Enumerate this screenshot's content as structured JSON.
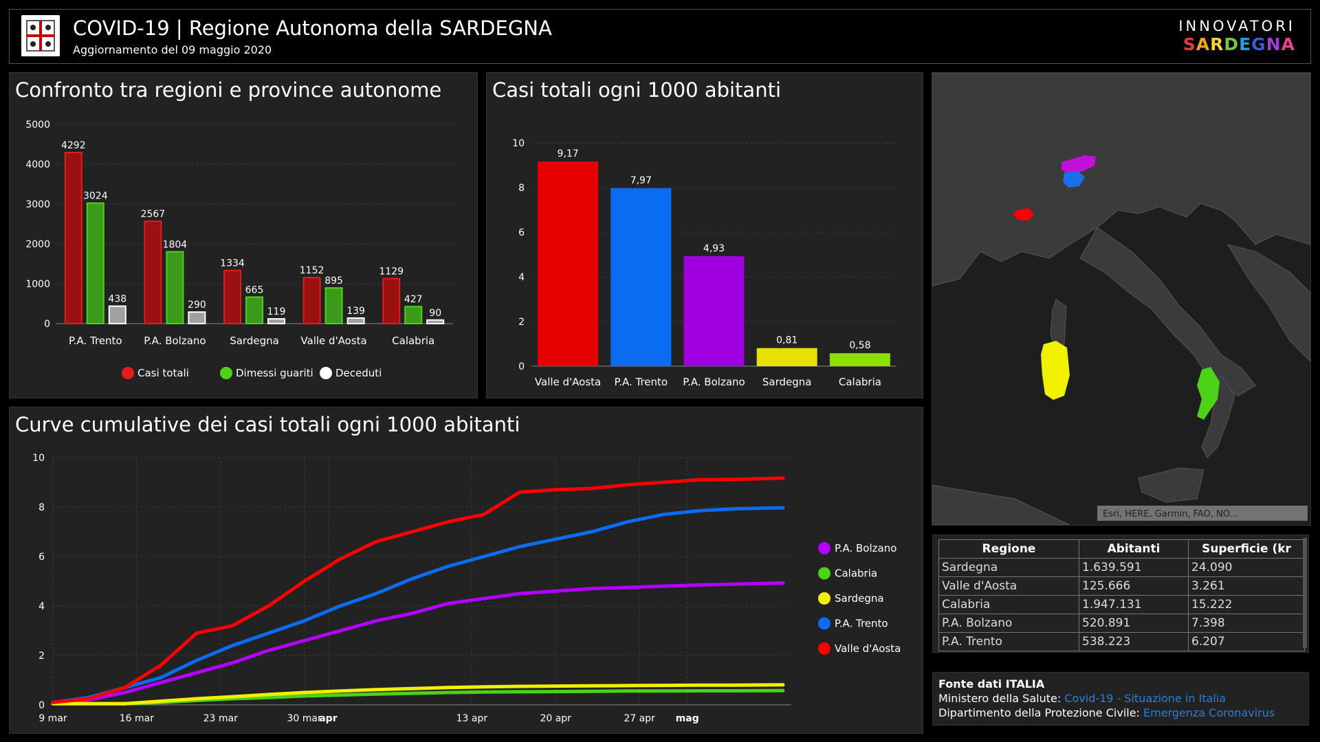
{
  "header": {
    "title": "COVID-19 | Regione Autonoma della SARDEGNA",
    "subtitle": "Aggiornamento del 09 maggio 2020",
    "brand_top": "INNOVATORI",
    "brand_bottom": "SARDEGNA",
    "brand_colors": [
      "#e63946",
      "#f4a21e",
      "#f3d23a",
      "#7cc24a",
      "#1fa0d8",
      "#3c5bd8",
      "#9b3fd1",
      "#e2468a"
    ]
  },
  "chart_data": [
    {
      "type": "bar",
      "title": "Confronto tra regioni e province autonome",
      "categories": [
        "P.A. Trento",
        "P.A. Bolzano",
        "Sardegna",
        "Valle d'Aosta",
        "Calabria"
      ],
      "series": [
        {
          "name": "Casi totali",
          "values": [
            4292,
            2567,
            1334,
            1152,
            1129
          ],
          "color": "#9b1111"
        },
        {
          "name": "Dimessi guariti",
          "values": [
            3024,
            1804,
            665,
            895,
            427
          ],
          "color": "#3c9a1a"
        },
        {
          "name": "Deceduti",
          "values": [
            438,
            290,
            119,
            139,
            90
          ],
          "color": "#a0a0a0"
        }
      ],
      "legend_colors": [
        "#e61b1b",
        "#4cd318",
        "#ffffff"
      ],
      "ylim": [
        0,
        5000
      ],
      "yticks": [
        "0",
        "1000",
        "2000",
        "3000",
        "4000",
        "5000"
      ],
      "legend": "bottom",
      "grid": true
    },
    {
      "type": "bar",
      "title": "Casi totali ogni 1000 abitanti",
      "categories": [
        "Valle d'Aosta",
        "P.A. Trento",
        "P.A. Bolzano",
        "Sardegna",
        "Calabria"
      ],
      "values": [
        9.17,
        7.97,
        4.93,
        0.81,
        0.58
      ],
      "labels": [
        "9,17",
        "7,97",
        "4,93",
        "0,81",
        "0,58"
      ],
      "colors": [
        "#e60000",
        "#0a6cf0",
        "#a000e0",
        "#e8e000",
        "#8ce000"
      ],
      "ylim": [
        0,
        10
      ],
      "yticks": [
        "0",
        "2",
        "4",
        "6",
        "8",
        "10"
      ],
      "grid": true
    },
    {
      "type": "line",
      "title": "Curve cumulative dei casi totali ogni 1000 abitanti",
      "x_dates": [
        "2020-03-09",
        "2020-03-12",
        "2020-03-15",
        "2020-03-18",
        "2020-03-21",
        "2020-03-24",
        "2020-03-27",
        "2020-03-30",
        "2020-04-02",
        "2020-04-05",
        "2020-04-08",
        "2020-04-11",
        "2020-04-14",
        "2020-04-17",
        "2020-04-20",
        "2020-04-23",
        "2020-04-26",
        "2020-04-29",
        "2020-05-02",
        "2020-05-05",
        "2020-05-09"
      ],
      "xticks": [
        "9 mar",
        "16 mar",
        "23 mar",
        "30 mar",
        "apr",
        "13 apr",
        "20 apr",
        "27 apr",
        "mag"
      ],
      "xtick_dates": [
        "2020-03-09",
        "2020-03-16",
        "2020-03-23",
        "2020-03-30",
        "2020-04-01",
        "2020-04-13",
        "2020-04-20",
        "2020-04-27",
        "2020-05-01"
      ],
      "ylim": [
        0,
        10
      ],
      "yticks": [
        "0",
        "2",
        "4",
        "6",
        "8",
        "10"
      ],
      "legend": "right",
      "grid": true,
      "series": [
        {
          "name": "P.A. Bolzano",
          "color": "#b400ff",
          "values": [
            0.1,
            0.2,
            0.5,
            0.9,
            1.3,
            1.7,
            2.2,
            2.6,
            3.0,
            3.4,
            3.7,
            4.1,
            4.3,
            4.5,
            4.6,
            4.7,
            4.75,
            4.8,
            4.85,
            4.88,
            4.93
          ]
        },
        {
          "name": "Calabria",
          "color": "#4cd318",
          "values": [
            0.05,
            0.05,
            0.05,
            0.1,
            0.18,
            0.25,
            0.3,
            0.36,
            0.4,
            0.44,
            0.47,
            0.5,
            0.52,
            0.53,
            0.54,
            0.55,
            0.56,
            0.56,
            0.57,
            0.57,
            0.58
          ]
        },
        {
          "name": "Sardegna",
          "color": "#f0f000",
          "values": [
            0.05,
            0.05,
            0.05,
            0.15,
            0.25,
            0.33,
            0.42,
            0.5,
            0.56,
            0.62,
            0.66,
            0.7,
            0.73,
            0.75,
            0.76,
            0.77,
            0.78,
            0.79,
            0.8,
            0.8,
            0.81
          ]
        },
        {
          "name": "P.A. Trento",
          "color": "#0a6cf0",
          "values": [
            0.1,
            0.3,
            0.7,
            1.1,
            1.8,
            2.4,
            2.9,
            3.4,
            4.0,
            4.5,
            5.1,
            5.6,
            6.0,
            6.4,
            6.7,
            7.0,
            7.4,
            7.7,
            7.85,
            7.93,
            7.97
          ]
        },
        {
          "name": "Valle d'Aosta",
          "color": "#ff0000",
          "values": [
            0.1,
            0.25,
            0.7,
            1.6,
            2.9,
            3.2,
            4.0,
            5.0,
            5.9,
            6.6,
            7.0,
            7.4,
            7.7,
            8.6,
            8.7,
            8.75,
            8.9,
            9.0,
            9.1,
            9.12,
            9.17
          ]
        }
      ]
    }
  ],
  "map": {
    "attribution": "Esri, HERE, Garmin, FAO, NO..."
  },
  "table": {
    "headers": [
      "Regione",
      "Abitanti",
      "Superficie (kr"
    ],
    "rows": [
      [
        "Sardegna",
        "1.639.591",
        "24.090"
      ],
      [
        "Valle d'Aosta",
        "125.666",
        "3.261"
      ],
      [
        "Calabria",
        "1.947.131",
        "15.222"
      ],
      [
        "P.A. Bolzano",
        "520.891",
        "7.398"
      ],
      [
        "P.A. Trento",
        "538.223",
        "6.207"
      ]
    ]
  },
  "sources": {
    "title": "Fonte dati ITALIA",
    "line1_prefix": "Ministero della Salute: ",
    "line1_link": "Covid-19 - Situazione in Italia",
    "line2_prefix": "Dipartimento della Protezione Civile: ",
    "line2_link": "Emergenza Coronavirus"
  }
}
